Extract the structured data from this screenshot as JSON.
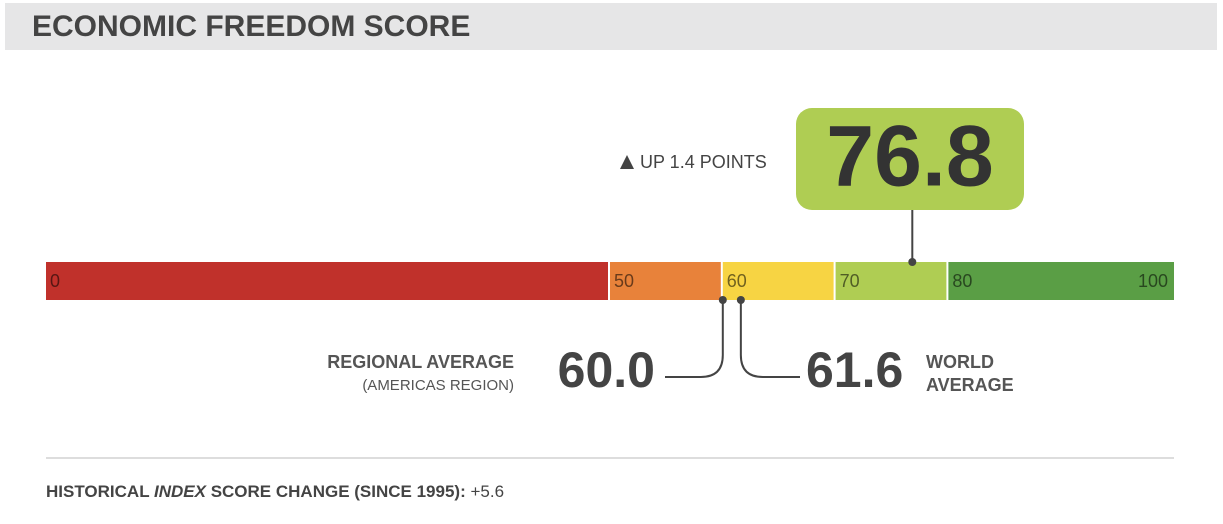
{
  "header": {
    "title": "ECONOMIC FREEDOM SCORE"
  },
  "score": {
    "value": 76.8,
    "change_label": "UP 1.4 POINTS",
    "color": "#afcd53"
  },
  "scale": {
    "ticks": [
      0,
      50,
      60,
      70,
      80,
      100
    ],
    "colors": [
      "#c0312b",
      "#e8823a",
      "#f7d443",
      "#afcd53",
      "#5a9e45"
    ]
  },
  "regional_average": {
    "label": "REGIONAL AVERAGE",
    "sublabel": "(AMERICAS REGION)",
    "value": {
      "value": 60,
      "label": "60.0"
    }
  },
  "world_average": {
    "label_line1": "WORLD",
    "label_line2": "AVERAGE",
    "value": 61.6
  },
  "footer": {
    "parts": [
      "HISTORICAL ",
      "INDEX",
      " SCORE CHANGE (SINCE 1995): ",
      "+5.6"
    ]
  }
}
